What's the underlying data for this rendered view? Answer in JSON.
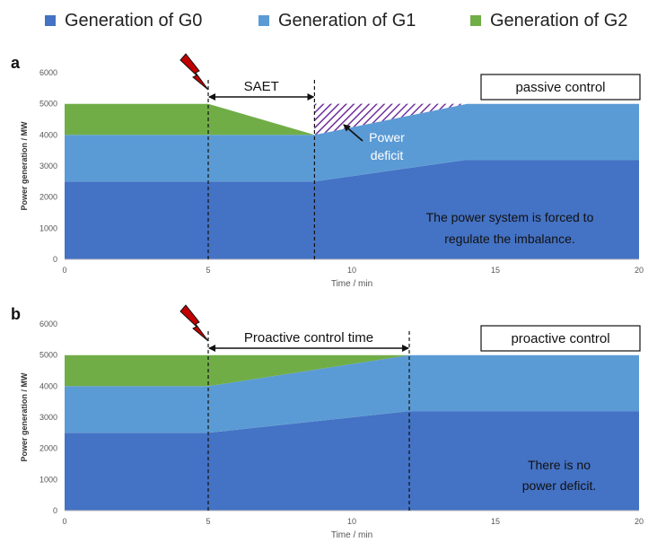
{
  "legend": [
    {
      "label": "Generation of G0",
      "color": "#4472C4"
    },
    {
      "label": "Generation of G1",
      "color": "#5B9BD5"
    },
    {
      "label": "Generation of G2",
      "color": "#70AD47"
    }
  ],
  "chart_data": [
    {
      "type": "area",
      "stacked": true,
      "panel_label": "a",
      "xlabel": "Time / min",
      "ylabel": "Power generation / MW",
      "xlim": [
        0,
        20
      ],
      "ylim": [
        0,
        6000
      ],
      "x_ticks": [
        0,
        5,
        10,
        15,
        20
      ],
      "y_ticks": [
        0,
        1000,
        2000,
        3000,
        4000,
        5000,
        6000
      ],
      "x": [
        0,
        5,
        8.7,
        14,
        20
      ],
      "series": [
        {
          "name": "Generation of G0",
          "color": "#4472C4",
          "values": [
            2500,
            2500,
            2500,
            3200,
            3200
          ]
        },
        {
          "name": "Generation of G1",
          "color": "#5B9BD5",
          "values": [
            1500,
            1500,
            1500,
            1800,
            1800
          ]
        },
        {
          "name": "Generation of G2",
          "color": "#70AD47",
          "values": [
            1000,
            1000,
            0,
            0,
            0
          ]
        }
      ],
      "deficit_region": {
        "x": [
          8.7,
          14
        ],
        "top": 5000
      },
      "vlines": [
        5,
        8.7
      ],
      "span_label": "SAET",
      "box_label": "passive control",
      "deficit_label": [
        "Power",
        "deficit"
      ],
      "note": [
        "The power system is forced to",
        "regulate the imbalance."
      ]
    },
    {
      "type": "area",
      "stacked": true,
      "panel_label": "b",
      "xlabel": "Time / min",
      "ylabel": "Power generation / MW",
      "xlim": [
        0,
        20
      ],
      "ylim": [
        0,
        6000
      ],
      "x_ticks": [
        0,
        5,
        10,
        15,
        20
      ],
      "y_ticks": [
        0,
        1000,
        2000,
        3000,
        4000,
        5000,
        6000
      ],
      "x": [
        0,
        5,
        12,
        20
      ],
      "series": [
        {
          "name": "Generation of G0",
          "color": "#4472C4",
          "values": [
            2500,
            2500,
            3200,
            3200
          ]
        },
        {
          "name": "Generation of G1",
          "color": "#5B9BD5",
          "values": [
            1500,
            1500,
            1800,
            1800
          ]
        },
        {
          "name": "Generation of G2",
          "color": "#70AD47",
          "values": [
            1000,
            1000,
            0,
            0
          ]
        }
      ],
      "vlines": [
        5,
        12
      ],
      "span_label": "Proactive control time",
      "box_label": "proactive control",
      "note": [
        "There is no",
        "power deficit."
      ]
    }
  ]
}
